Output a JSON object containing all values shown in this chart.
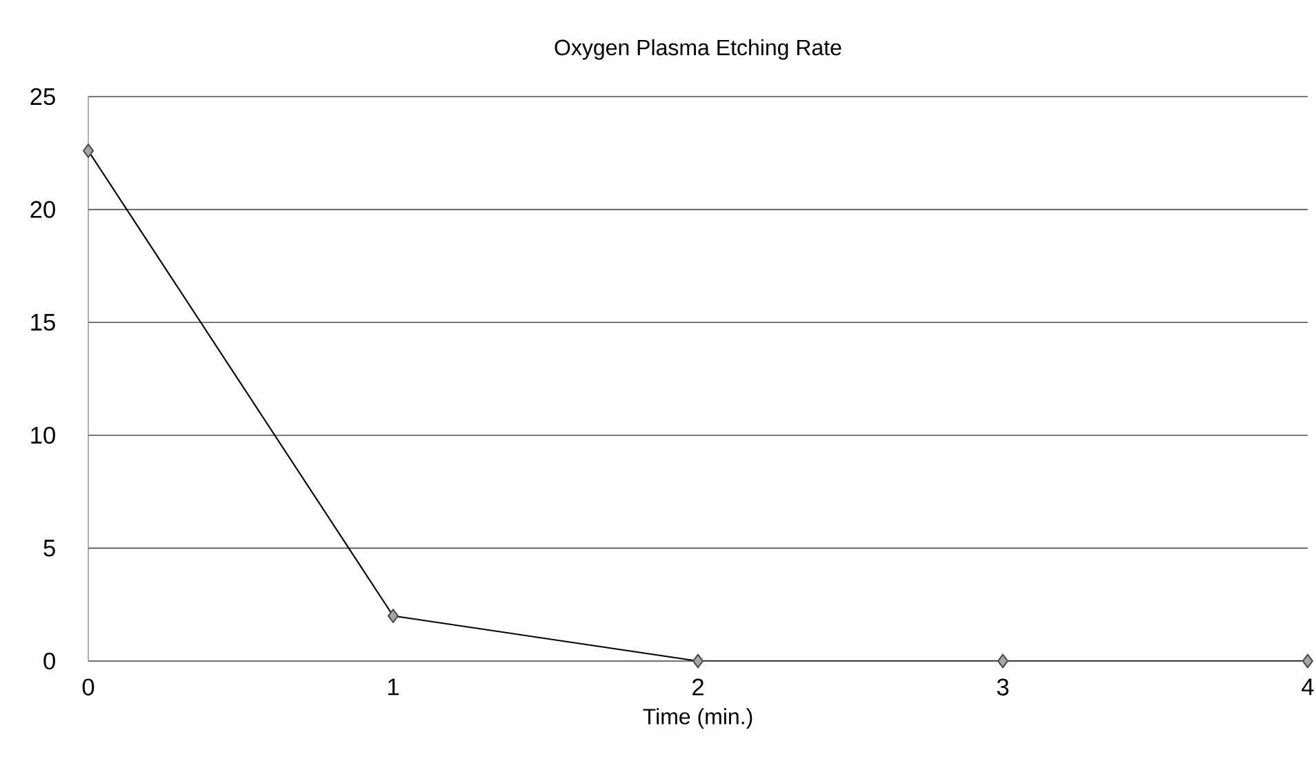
{
  "chart_data": {
    "type": "line",
    "title": "Oxygen Plasma Etching Rate",
    "xlabel": "Time (min.)",
    "x": [
      0,
      1,
      2,
      3,
      4
    ],
    "series": [
      {
        "color": "#000000",
        "values": [
          22.6,
          2.0,
          0,
          0,
          0
        ]
      }
    ],
    "xlim": [
      0,
      4
    ],
    "xticks": [
      0,
      1,
      2,
      3,
      4
    ],
    "ylim": [
      0,
      25
    ],
    "yticks": [
      0,
      5,
      10,
      15,
      20,
      25
    ],
    "grid": "y",
    "marker": "diamond",
    "line_style": "solid"
  }
}
